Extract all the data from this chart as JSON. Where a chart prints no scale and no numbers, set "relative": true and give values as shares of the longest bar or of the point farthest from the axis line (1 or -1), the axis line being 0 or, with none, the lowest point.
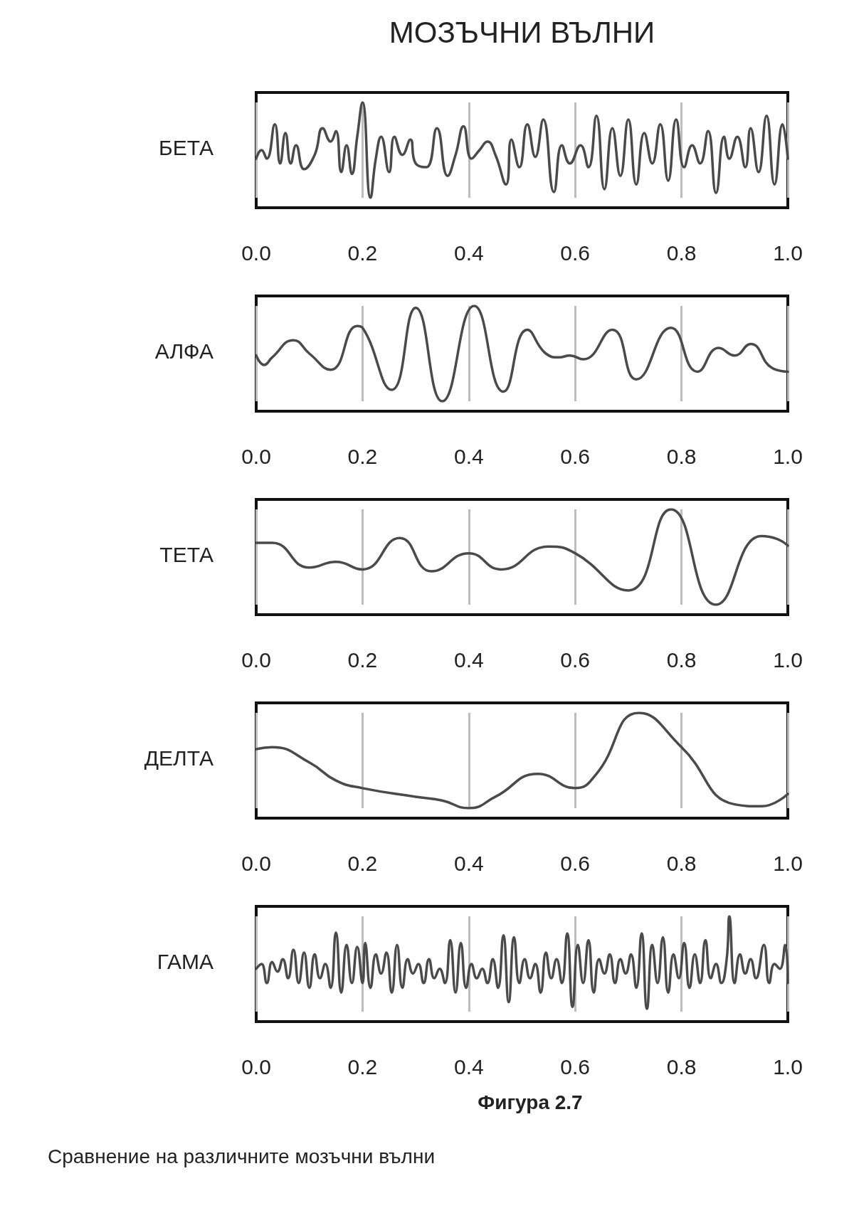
{
  "chart_data": [
    {
      "type": "line",
      "title": "МОЗЪЧНИ ВЪЛНИ",
      "ylabel": "БЕТА",
      "relative": true,
      "grid": "x",
      "marker": "none",
      "line_style": "solid",
      "xlim": [
        0,
        1
      ],
      "xticks": [
        {
          "value": 0,
          "label": "0.0"
        },
        {
          "value": 0.2,
          "label": "0.2"
        },
        {
          "value": 0.4,
          "label": "0.4"
        },
        {
          "value": 0.6,
          "label": "0.6"
        },
        {
          "value": 0.8,
          "label": "0.8"
        },
        {
          "value": 1,
          "label": "1.0"
        }
      ],
      "series": [
        {
          "color": "#4a4a4a",
          "x": [
            0,
            0.01,
            0.02,
            0.035,
            0.045,
            0.055,
            0.065,
            0.075,
            0.09,
            0.11,
            0.125,
            0.14,
            0.15,
            0.16,
            0.17,
            0.18,
            0.19,
            0.2,
            0.215,
            0.225,
            0.235,
            0.25,
            0.26,
            0.275,
            0.29,
            0.3,
            0.32,
            0.34,
            0.36,
            0.375,
            0.39,
            0.405,
            0.42,
            0.435,
            0.45,
            0.47,
            0.48,
            0.495,
            0.51,
            0.525,
            0.54,
            0.56,
            0.575,
            0.59,
            0.61,
            0.625,
            0.64,
            0.655,
            0.67,
            0.685,
            0.7,
            0.715,
            0.73,
            0.745,
            0.76,
            0.775,
            0.79,
            0.805,
            0.82,
            0.835,
            0.85,
            0.865,
            0.88,
            0.89,
            0.905,
            0.92,
            0.93,
            0.945,
            0.96,
            0.975,
            0.99,
            1.0
          ],
          "values": [
            0.41,
            0.5,
            0.41,
            0.77,
            0.36,
            0.68,
            0.36,
            0.55,
            0.3,
            0.45,
            0.73,
            0.59,
            0.7,
            0.27,
            0.55,
            0.25,
            0.64,
            1,
            0,
            0.41,
            0.64,
            0.27,
            0.64,
            0.45,
            0.61,
            0.36,
            0.32,
            0.73,
            0.23,
            0.45,
            0.75,
            0.41,
            0.5,
            0.59,
            0.45,
            0.14,
            0.61,
            0.32,
            0.77,
            0.43,
            0.82,
            0.06,
            0.55,
            0.36,
            0.55,
            0.32,
            0.86,
            0.09,
            0.73,
            0.23,
            0.82,
            0.14,
            0.68,
            0.36,
            0.77,
            0.18,
            0.82,
            0.32,
            0.55,
            0.36,
            0.7,
            0.05,
            0.64,
            0.41,
            0.64,
            0.32,
            0.73,
            0.27,
            0.86,
            0.14,
            0.77,
            0.41
          ]
        }
      ]
    },
    {
      "type": "line",
      "ylabel": "АЛФА",
      "relative": true,
      "grid": "x",
      "marker": "none",
      "line_style": "solid",
      "xlim": [
        0,
        1
      ],
      "xticks": [
        {
          "value": 0,
          "label": "0.0"
        },
        {
          "value": 0.2,
          "label": "0.2"
        },
        {
          "value": 0.4,
          "label": "0.4"
        },
        {
          "value": 0.6,
          "label": "0.6"
        },
        {
          "value": 0.8,
          "label": "0.8"
        },
        {
          "value": 1,
          "label": "1.0"
        }
      ],
      "series": [
        {
          "color": "#4a4a4a",
          "x": [
            0,
            0.015,
            0.03,
            0.07,
            0.1,
            0.14,
            0.19,
            0.2,
            0.255,
            0.3,
            0.35,
            0.41,
            0.465,
            0.51,
            0.545,
            0.57,
            0.59,
            0.615,
            0.67,
            0.715,
            0.78,
            0.83,
            0.87,
            0.9,
            0.93,
            0.97,
            1.0
          ],
          "values": [
            0.48,
            0.38,
            0.46,
            0.64,
            0.5,
            0.33,
            0.79,
            0.77,
            0.12,
            0.98,
            0,
            1,
            0.1,
            0.75,
            0.5,
            0.46,
            0.48,
            0.44,
            0.75,
            0.23,
            0.77,
            0.31,
            0.56,
            0.48,
            0.6,
            0.35,
            0.31
          ]
        }
      ]
    },
    {
      "type": "line",
      "ylabel": "ТЕТА",
      "relative": true,
      "grid": "x",
      "marker": "none",
      "line_style": "solid",
      "xlim": [
        0,
        1
      ],
      "xticks": [
        {
          "value": 0,
          "label": "0.0"
        },
        {
          "value": 0.2,
          "label": "0.2"
        },
        {
          "value": 0.4,
          "label": "0.4"
        },
        {
          "value": 0.6,
          "label": "0.6"
        },
        {
          "value": 0.8,
          "label": "0.8"
        },
        {
          "value": 1,
          "label": "1.0"
        }
      ],
      "series": [
        {
          "color": "#4a4a4a",
          "x": [
            0,
            0.03,
            0.1,
            0.15,
            0.2,
            0.27,
            0.33,
            0.4,
            0.46,
            0.55,
            0.6,
            0.7,
            0.78,
            0.865,
            0.95,
            0.98,
            1.0
          ],
          "values": [
            0.65,
            0.65,
            0.39,
            0.45,
            0.37,
            0.7,
            0.35,
            0.54,
            0.37,
            0.61,
            0.54,
            0.15,
            1,
            0,
            0.72,
            0.69,
            0.62
          ]
        }
      ]
    },
    {
      "type": "line",
      "ylabel": "ДЕЛТА",
      "relative": true,
      "grid": "x",
      "marker": "none",
      "line_style": "solid",
      "xlim": [
        0,
        1
      ],
      "xticks": [
        {
          "value": 0,
          "label": "0.0"
        },
        {
          "value": 0.2,
          "label": "0.2"
        },
        {
          "value": 0.4,
          "label": "0.4"
        },
        {
          "value": 0.6,
          "label": "0.6"
        },
        {
          "value": 0.8,
          "label": "0.8"
        },
        {
          "value": 1,
          "label": "1.0"
        }
      ],
      "series": [
        {
          "color": "#4a4a4a",
          "x": [
            0,
            0.03,
            0.1,
            0.15,
            0.2,
            0.3,
            0.35,
            0.4,
            0.45,
            0.53,
            0.6,
            0.64,
            0.72,
            0.8,
            0.9,
            0.95,
            1.0
          ],
          "values": [
            0.62,
            0.64,
            0.48,
            0.29,
            0.21,
            0.12,
            0.08,
            0,
            0.12,
            0.36,
            0.21,
            0.36,
            1,
            0.64,
            0.04,
            0.02,
            0.15
          ]
        }
      ]
    },
    {
      "type": "line",
      "ylabel": "ГАМА",
      "relative": true,
      "grid": "x",
      "marker": "none",
      "line_style": "solid",
      "xlim": [
        0,
        1
      ],
      "xticks": [
        {
          "value": 0,
          "label": "0.0"
        },
        {
          "value": 0.2,
          "label": "0.2"
        },
        {
          "value": 0.4,
          "label": "0.4"
        },
        {
          "value": 0.6,
          "label": "0.6"
        },
        {
          "value": 0.8,
          "label": "0.8"
        },
        {
          "value": 1,
          "label": "1.0"
        }
      ],
      "annotations": [
        "Фигура 2.7",
        "Сравнение на различните мозъчни вълни"
      ],
      "series": [
        {
          "color": "#4a4a4a",
          "x": [
            0,
            0.01,
            0.02,
            0.03,
            0.04,
            0.05,
            0.06,
            0.07,
            0.08,
            0.09,
            0.1,
            0.11,
            0.12,
            0.13,
            0.14,
            0.15,
            0.16,
            0.17,
            0.18,
            0.19,
            0.2,
            0.205,
            0.215,
            0.225,
            0.235,
            0.245,
            0.255,
            0.265,
            0.275,
            0.285,
            0.295,
            0.305,
            0.315,
            0.325,
            0.335,
            0.345,
            0.355,
            0.365,
            0.375,
            0.385,
            0.395,
            0.405,
            0.415,
            0.425,
            0.435,
            0.445,
            0.455,
            0.465,
            0.475,
            0.485,
            0.495,
            0.505,
            0.515,
            0.525,
            0.535,
            0.545,
            0.555,
            0.565,
            0.575,
            0.585,
            0.595,
            0.605,
            0.615,
            0.625,
            0.635,
            0.645,
            0.655,
            0.665,
            0.675,
            0.685,
            0.695,
            0.705,
            0.715,
            0.725,
            0.735,
            0.745,
            0.755,
            0.765,
            0.775,
            0.785,
            0.795,
            0.805,
            0.815,
            0.825,
            0.835,
            0.845,
            0.855,
            0.865,
            0.875,
            0.885,
            0.89,
            0.9,
            0.91,
            0.92,
            0.93,
            0.94,
            0.955,
            0.965,
            0.975,
            0.985,
            0.995,
            1.0
          ],
          "values": [
            0.45,
            0.5,
            0.3,
            0.52,
            0.42,
            0.55,
            0.35,
            0.65,
            0.3,
            0.62,
            0.25,
            0.6,
            0.35,
            0.5,
            0.25,
            0.83,
            0.2,
            0.7,
            0.3,
            0.68,
            0.3,
            0.72,
            0.25,
            0.6,
            0.4,
            0.62,
            0.2,
            0.7,
            0.25,
            0.55,
            0.4,
            0.5,
            0.3,
            0.55,
            0.35,
            0.45,
            0.3,
            0.75,
            0.2,
            0.72,
            0.25,
            0.5,
            0.35,
            0.45,
            0.3,
            0.55,
            0.25,
            0.8,
            0.1,
            0.78,
            0.3,
            0.55,
            0.35,
            0.5,
            0.2,
            0.62,
            0.35,
            0.55,
            0.3,
            0.82,
            0.05,
            0.7,
            0.3,
            0.75,
            0.2,
            0.55,
            0.4,
            0.6,
            0.3,
            0.55,
            0.4,
            0.6,
            0.25,
            0.82,
            0.03,
            0.7,
            0.3,
            0.78,
            0.2,
            0.6,
            0.35,
            0.72,
            0.25,
            0.6,
            0.3,
            0.75,
            0.35,
            0.5,
            0.3,
            0.55,
            1,
            0.3,
            0.6,
            0.4,
            0.55,
            0.35,
            0.7,
            0.3,
            0.5,
            0.45,
            0.7,
            0.3
          ]
        }
      ]
    }
  ]
}
